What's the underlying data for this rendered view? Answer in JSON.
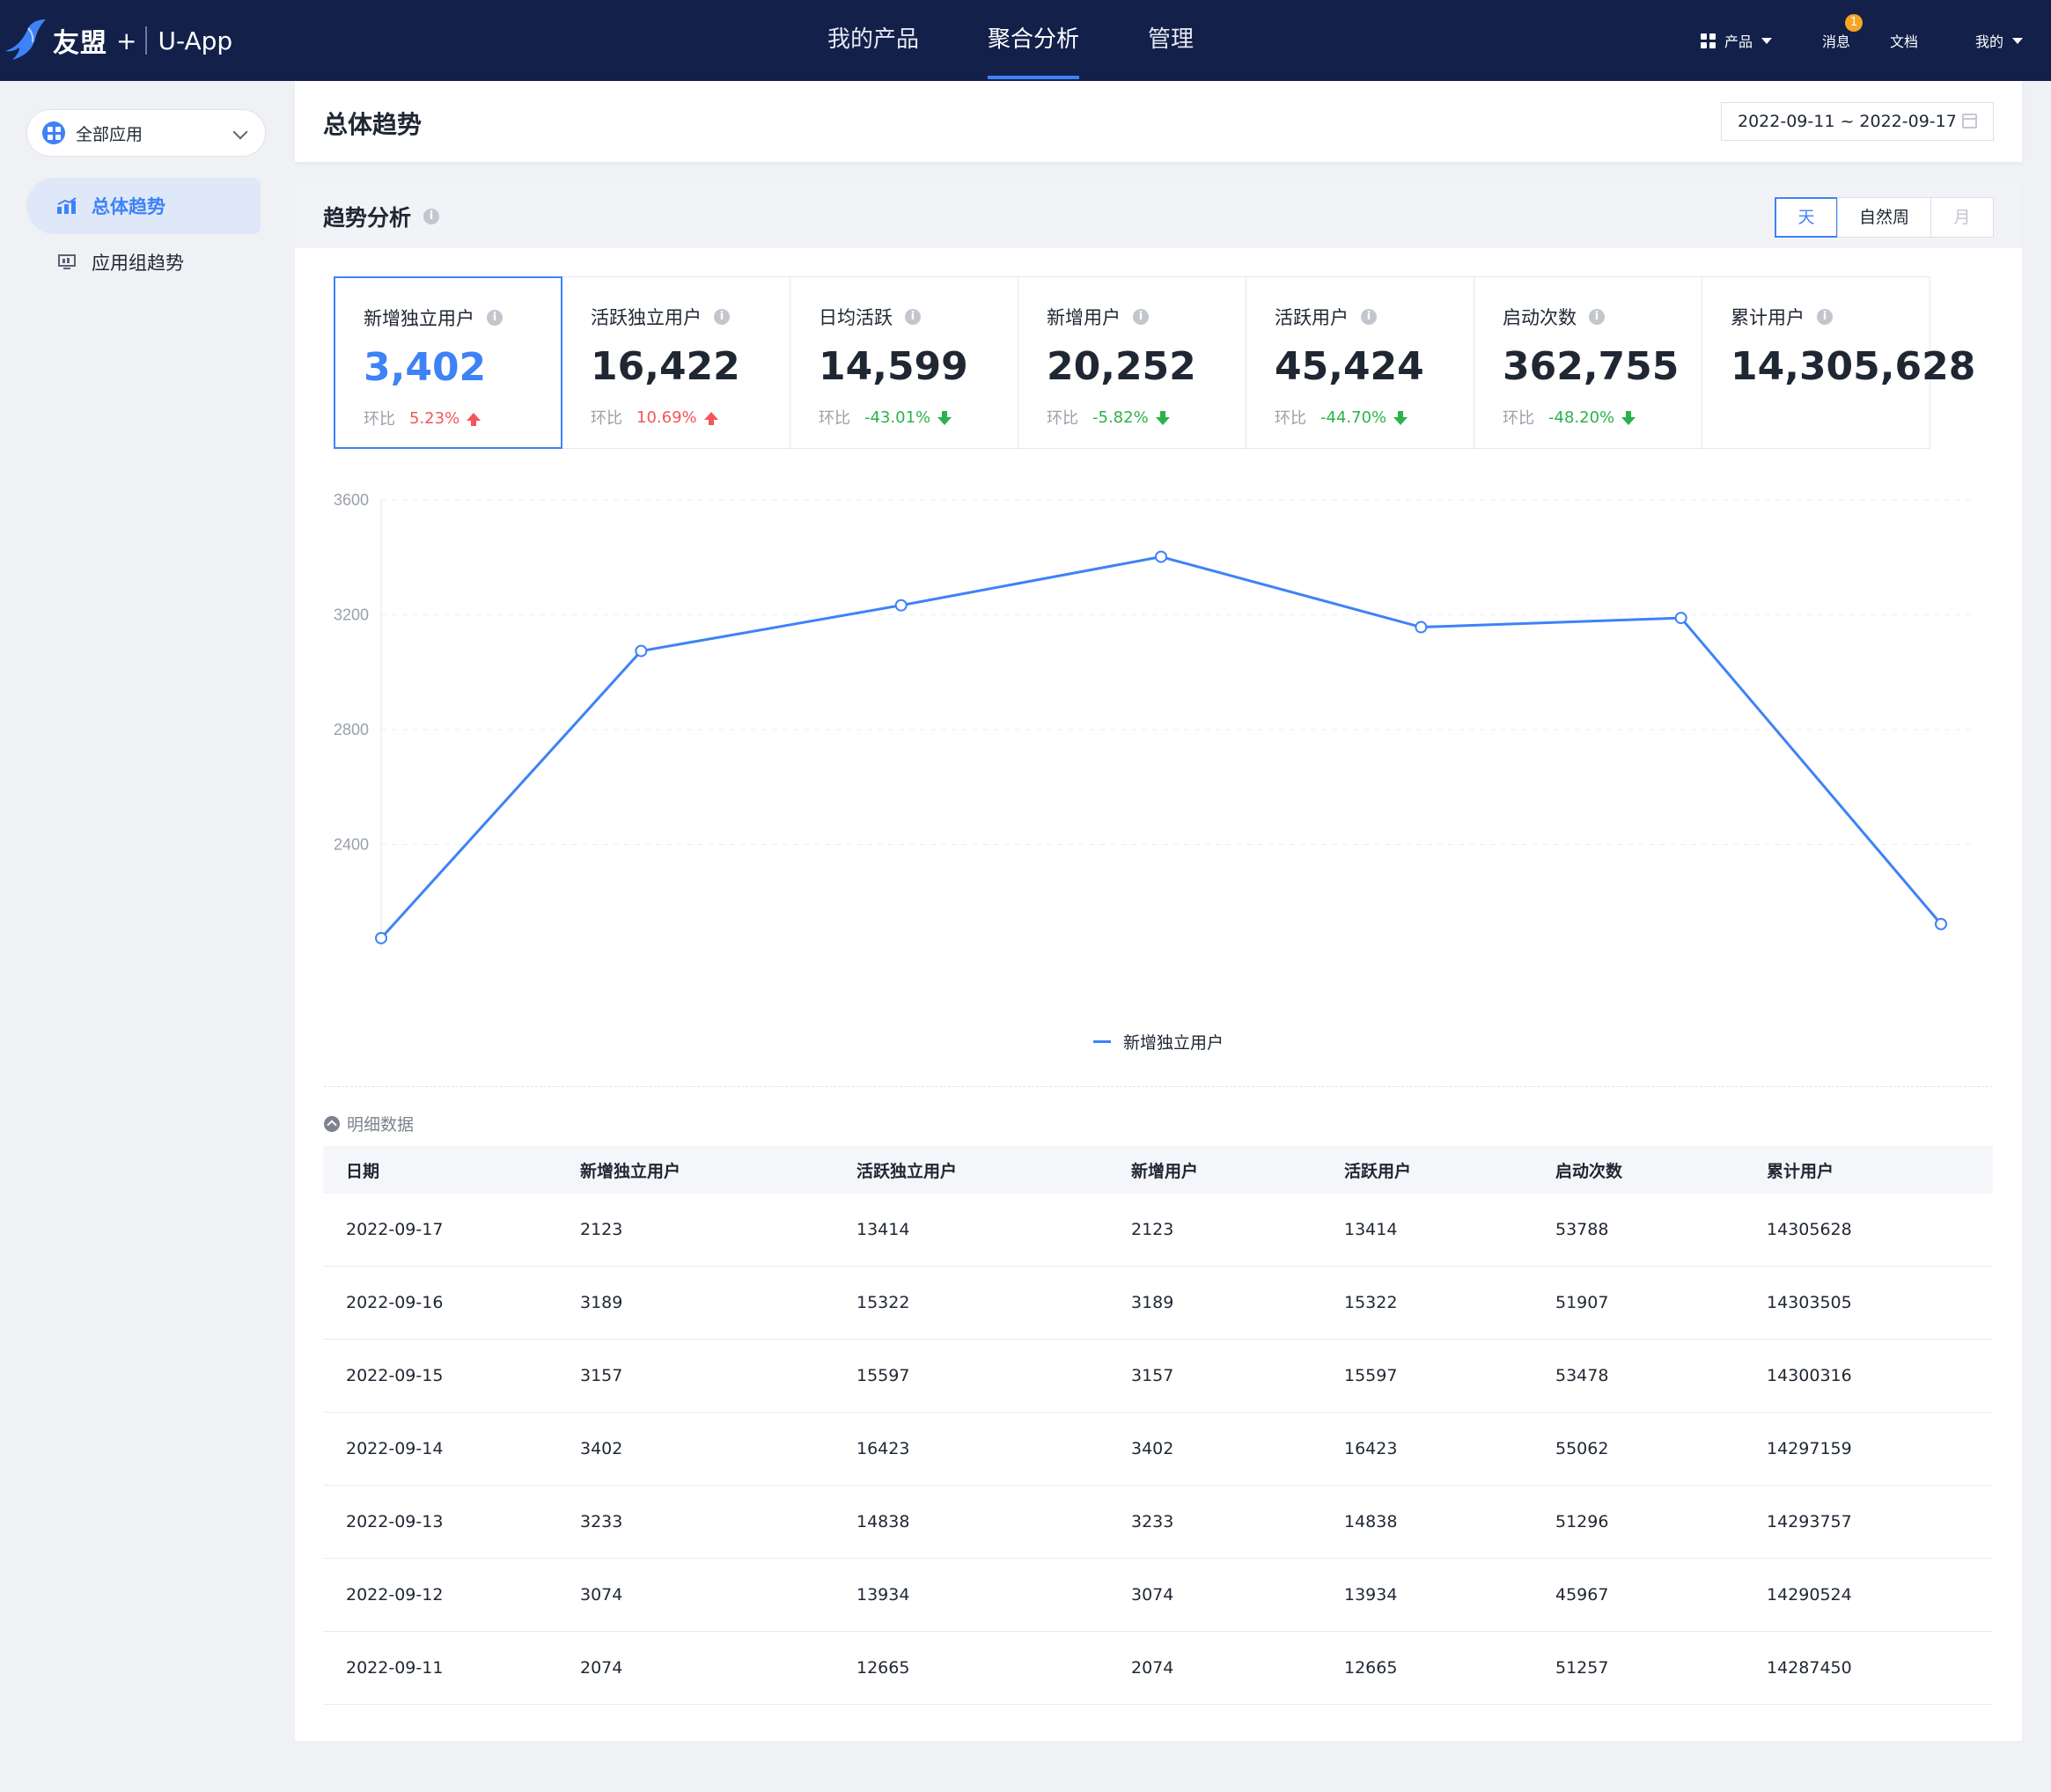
{
  "brand": {
    "name": "友盟",
    "plus": "+",
    "app": "U-App"
  },
  "nav": {
    "tabs": [
      {
        "label": "我的产品"
      },
      {
        "label": "聚合分析"
      },
      {
        "label": "管理"
      }
    ]
  },
  "topRight": {
    "products": "产品",
    "messages": "消息",
    "messages_badge": "1",
    "docs": "文档",
    "mine": "我的"
  },
  "sidebar": {
    "app_select": "全部应用",
    "items": [
      {
        "label": "总体趋势"
      },
      {
        "label": "应用组趋势"
      }
    ]
  },
  "header": {
    "title": "总体趋势",
    "date_range": "2022-09-11 ~ 2022-09-17"
  },
  "trend": {
    "title": "趋势分析",
    "periods": [
      {
        "label": "天"
      },
      {
        "label": "自然周"
      },
      {
        "label": "月"
      }
    ],
    "change_label": "环比",
    "metrics": [
      {
        "label": "新增独立用户",
        "value": "3,402",
        "change": "5.23%",
        "dir": "up"
      },
      {
        "label": "活跃独立用户",
        "value": "16,422",
        "change": "10.69%",
        "dir": "up"
      },
      {
        "label": "日均活跃",
        "value": "14,599",
        "change": "-43.01%",
        "dir": "down"
      },
      {
        "label": "新增用户",
        "value": "20,252",
        "change": "-5.82%",
        "dir": "down"
      },
      {
        "label": "活跃用户",
        "value": "45,424",
        "change": "-44.70%",
        "dir": "down"
      },
      {
        "label": "启动次数",
        "value": "362,755",
        "change": "-48.20%",
        "dir": "down"
      },
      {
        "label": "累计用户",
        "value": "14,305,628",
        "change": "",
        "dir": ""
      }
    ]
  },
  "chart_data": {
    "type": "line",
    "x": [
      "2022-09-11",
      "2022-09-12",
      "2022-09-13",
      "2022-09-14",
      "2022-09-15",
      "2022-09-16",
      "2022-09-17"
    ],
    "series": [
      {
        "name": "新增独立用户",
        "values": [
          2074,
          3074,
          3233,
          3402,
          3157,
          3189,
          2123
        ]
      }
    ],
    "yticks": [
      2000,
      2400,
      2800,
      3200,
      3600
    ],
    "ylim": [
      2000,
      3600
    ],
    "grid": true,
    "legend": "bottom-center",
    "color": "#3e82f7"
  },
  "detail": {
    "toggle_label": "明细数据",
    "columns": [
      "日期",
      "新增独立用户",
      "活跃独立用户",
      "新增用户",
      "活跃用户",
      "启动次数",
      "累计用户"
    ],
    "rows": [
      [
        "2022-09-17",
        "2123",
        "13414",
        "2123",
        "13414",
        "53788",
        "14305628"
      ],
      [
        "2022-09-16",
        "3189",
        "15322",
        "3189",
        "15322",
        "51907",
        "14303505"
      ],
      [
        "2022-09-15",
        "3157",
        "15597",
        "3157",
        "15597",
        "53478",
        "14300316"
      ],
      [
        "2022-09-14",
        "3402",
        "16423",
        "3402",
        "16423",
        "55062",
        "14297159"
      ],
      [
        "2022-09-13",
        "3233",
        "14838",
        "3233",
        "14838",
        "51296",
        "14293757"
      ],
      [
        "2022-09-12",
        "3074",
        "13934",
        "3074",
        "13934",
        "45967",
        "14290524"
      ],
      [
        "2022-09-11",
        "2074",
        "12665",
        "2074",
        "12665",
        "51257",
        "14287450"
      ]
    ]
  }
}
